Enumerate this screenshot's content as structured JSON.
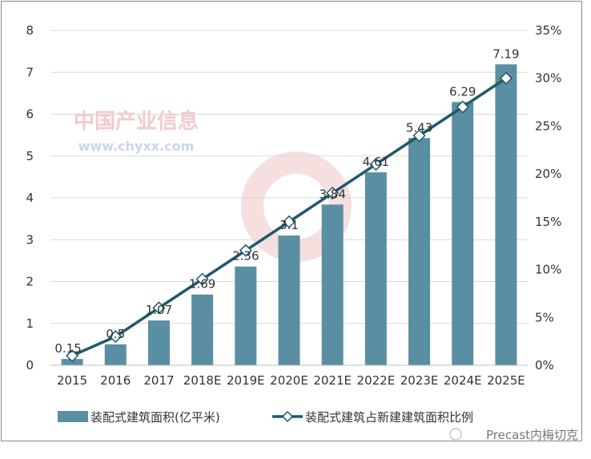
{
  "chart_data": {
    "type": "bar+line",
    "categories": [
      "2015",
      "2016",
      "2017",
      "2018E",
      "2019E",
      "2020E",
      "2021E",
      "2022E",
      "2023E",
      "2024E",
      "2025E"
    ],
    "series": [
      {
        "name": "装配式建筑面积(亿平米)",
        "type": "bar",
        "axis": "left",
        "values": [
          0.15,
          0.5,
          1.07,
          1.69,
          2.36,
          3.1,
          3.84,
          4.61,
          5.43,
          6.29,
          7.19
        ],
        "color": "#5a8ea2"
      },
      {
        "name": "装配式建筑占新建建筑面积比例",
        "type": "line",
        "axis": "right",
        "values": [
          1,
          3,
          6,
          9,
          12,
          15,
          18,
          21,
          24,
          27,
          30
        ],
        "unit": "%",
        "color": "#1d5a6b"
      }
    ],
    "left_axis": {
      "range": [
        0,
        8
      ],
      "ticks": [
        "0",
        "1",
        "2",
        "3",
        "4",
        "5",
        "6",
        "7",
        "8"
      ]
    },
    "right_axis": {
      "range": [
        0,
        35
      ],
      "ticks": [
        "0%",
        "5%",
        "10%",
        "15%",
        "20%",
        "25%",
        "30%",
        "35%"
      ]
    },
    "grid": true,
    "legend": "bottom",
    "watermark": {
      "text": "中国产业信息",
      "url": "www.chyxx.com"
    },
    "credit": "Precast内梅切克"
  }
}
